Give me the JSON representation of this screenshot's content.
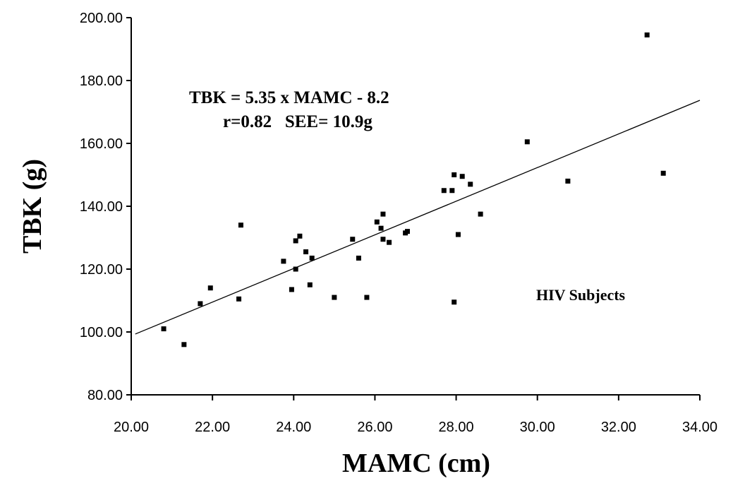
{
  "chart_data": {
    "type": "scatter",
    "title": "",
    "xlabel": "MAMC (cm)",
    "ylabel": "TBK (g)",
    "xlim": [
      20,
      34
    ],
    "ylim": [
      80,
      200
    ],
    "x_ticks": [
      "20.00",
      "22.00",
      "24.00",
      "26.00",
      "28.00",
      "30.00",
      "32.00",
      "34.00"
    ],
    "y_ticks": [
      "80.00",
      "100.00",
      "120.00",
      "140.00",
      "160.00",
      "180.00",
      "200.00"
    ],
    "grid": false,
    "legend": "none",
    "series": [
      {
        "points": [
          [
            20.8,
            101
          ],
          [
            21.3,
            96
          ],
          [
            21.7,
            109
          ],
          [
            21.95,
            114
          ],
          [
            22.65,
            110.5
          ],
          [
            22.7,
            134
          ],
          [
            23.75,
            122.5
          ],
          [
            23.95,
            113.5
          ],
          [
            24.05,
            120
          ],
          [
            24.05,
            129
          ],
          [
            24.15,
            130.5
          ],
          [
            24.3,
            125.5
          ],
          [
            24.4,
            115
          ],
          [
            24.45,
            123.5
          ],
          [
            25.0,
            111
          ],
          [
            25.45,
            129.5
          ],
          [
            25.6,
            123.5
          ],
          [
            25.8,
            111
          ],
          [
            26.05,
            135
          ],
          [
            26.15,
            133
          ],
          [
            26.2,
            137.5
          ],
          [
            26.2,
            129.5
          ],
          [
            26.35,
            128.5
          ],
          [
            26.75,
            131.5
          ],
          [
            26.8,
            132
          ],
          [
            27.7,
            145
          ],
          [
            27.9,
            145
          ],
          [
            27.95,
            109.5
          ],
          [
            27.95,
            150
          ],
          [
            28.05,
            131
          ],
          [
            28.15,
            149.5
          ],
          [
            28.35,
            147
          ],
          [
            28.6,
            137.5
          ],
          [
            29.75,
            160.5
          ],
          [
            30.75,
            148
          ],
          [
            32.7,
            194.5
          ],
          [
            33.1,
            150.5
          ]
        ]
      }
    ],
    "regression_line": {
      "slope": 5.35,
      "intercept": -8.2,
      "x_range": [
        20.1,
        34
      ]
    },
    "annotations": {
      "equation": "TBK = 5.35 x MAMC - 8.2",
      "stats": "r=0.82   SEE= 10.9g",
      "group_label": "HIV Subjects"
    }
  }
}
